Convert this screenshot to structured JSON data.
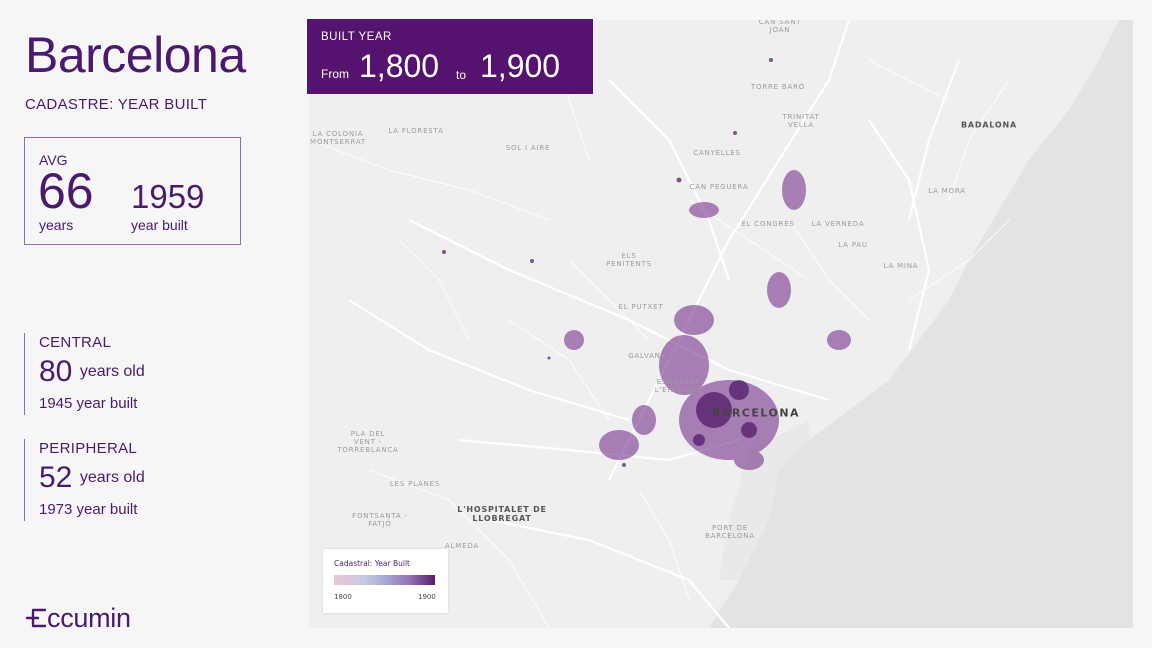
{
  "title": "Barcelona",
  "subtitle": "CADASTRE: YEAR BUILT",
  "avg": {
    "label": "AVG",
    "years": "66",
    "years_unit": "years",
    "built": "1959",
    "built_unit": "year built"
  },
  "central": {
    "label": "CENTRAL",
    "years": "80",
    "years_unit": "years old",
    "built": "1945 year built"
  },
  "peripheral": {
    "label": "PERIPHERAL",
    "years": "52",
    "years_unit": "years old",
    "built": "1973 year built"
  },
  "logo": {
    "text": "ccumin"
  },
  "year_filter": {
    "label": "BUILT YEAR",
    "from_label": "From",
    "start": "1,800",
    "to_label": "to",
    "end": "1,900"
  },
  "legend": {
    "title": "Cadastral: Year Built",
    "min": "1800",
    "max": "1900",
    "colors": [
      "#e9c7cf",
      "#c9c9e6",
      "#a7a9d3",
      "#9272b3",
      "#5a1a70"
    ]
  },
  "places": {
    "can_sant_joan": "CAN SANT\nJOAN",
    "torre_baro": "TORRE BARÓ",
    "trinitat_vella": "TRINITAT\nVELLA",
    "badalona": "BADALONA",
    "la_colonia": "LA COLONIA\nMONTSERRAT",
    "la_floresta": "LA FLORESTA",
    "sol_i_aire": "SOL I AIRE",
    "canyelles": "CANYELLES",
    "can_peguera": "CAN PEGUERA",
    "la_mora": "LA MORA",
    "el_congres": "EL CONGRÉS",
    "la_verneda": "LA VERNEDA",
    "la_pau": "LA PAU",
    "els_penitents": "ELS\nPENITENTS",
    "la_mina": "LA MINA",
    "el_putxet": "EL PUTXET",
    "galvany": "GALVANY",
    "esquerra": "ESQUERRA\nL'EIXAMPLE",
    "barcelona": "BARCELONA",
    "pla_del_vent": "PLA DEL\nVENT -\nTORREBLANCA",
    "les_planes": "LES PLANES",
    "hospitalet": "L'HOSPITALET DE\nLLOBREGAT",
    "fontsanta": "FONTSANTA -\nFATJÓ",
    "port_de_barcelona": "PORT DE\nBARCELONA",
    "almeda": "ALMEDA"
  }
}
